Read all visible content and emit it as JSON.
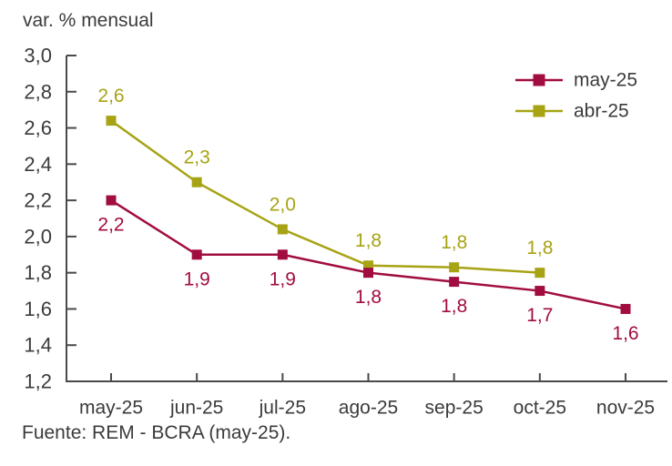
{
  "figure": {
    "title": "var. % mensual",
    "source": "Fuente: REM - BCRA (may-25)."
  },
  "chart_data": {
    "type": "line",
    "title": "var. % mensual",
    "categories": [
      "may-25",
      "jun-25",
      "jul-25",
      "ago-25",
      "sep-25",
      "oct-25",
      "nov-25"
    ],
    "xlabel": "",
    "ylabel": "var. % mensual",
    "ylim": [
      1.2,
      3.0
    ],
    "ytick_step": 0.2,
    "ytick_labels_top_to_bottom": [
      "3,0",
      "2,8",
      "2,6",
      "2,4",
      "2,2",
      "2,0",
      "1,8",
      "1,6",
      "1,4",
      "1,2"
    ],
    "grid": false,
    "legend_position": "top-right",
    "axis_color": "#4a4a4a",
    "text_color": "#3b3b3b",
    "series": [
      {
        "name": "may-25",
        "color": "#a10d40",
        "marker": "square",
        "values": [
          2.2,
          1.9,
          1.9,
          1.8,
          1.75,
          1.7,
          1.6
        ],
        "point_labels": [
          "2,2",
          "1,9",
          "1,9",
          "1,8",
          "1,8",
          "1,7",
          "1,6"
        ],
        "label_position": "below"
      },
      {
        "name": "abr-25",
        "color": "#a7a314",
        "marker": "square",
        "values": [
          2.64,
          2.3,
          2.04,
          1.84,
          1.83,
          1.8
        ],
        "point_labels": [
          "2,6",
          "2,3",
          "2,0",
          "1,8",
          "1,8",
          "1,8"
        ],
        "label_position": "above"
      }
    ],
    "source": "Fuente: REM - BCRA (may-25)."
  }
}
